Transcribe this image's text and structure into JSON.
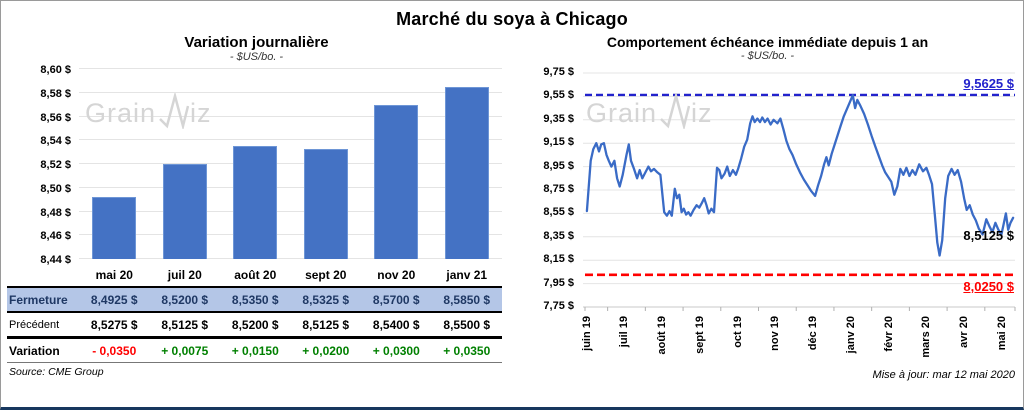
{
  "page": {
    "title": "Marché du soya à Chicago",
    "source": "Source: CME Group",
    "updated": "Mise à jour: mar 12 mai 2020",
    "watermark": {
      "prefix": "Grain",
      "suffix": "iz"
    }
  },
  "colors": {
    "bar": "#4472C4",
    "line": "#3A6BC6",
    "max_line": "#2222CC",
    "min_line": "#FF0000",
    "close_row_bg": "#B4C6E7",
    "close_row_text": "#1F3864",
    "negative": "#FF0000",
    "positive": "#008000",
    "gridline": "#E4E4E4",
    "watermark": "#D5D5D5"
  },
  "chart_data": [
    {
      "type": "bar",
      "title": "Variation  journalière",
      "subtitle": "- $US/bo. -",
      "categories": [
        "mai 20",
        "juil 20",
        "août 20",
        "sept 20",
        "nov 20",
        "janv 21"
      ],
      "values": [
        8.4925,
        8.52,
        8.535,
        8.5325,
        8.57,
        8.585
      ],
      "ylim": [
        8.44,
        8.6
      ],
      "ytick_values": [
        8.44,
        8.46,
        8.48,
        8.5,
        8.52,
        8.54,
        8.56,
        8.58,
        8.6
      ],
      "ytick_labels": [
        "8,44 $",
        "8,46 $",
        "8,48 $",
        "8,50 $",
        "8,52 $",
        "8,54 $",
        "8,56 $",
        "8,58 $",
        "8,60 $"
      ],
      "grid": true,
      "legend": false
    },
    {
      "type": "line",
      "title": "Comportement  échéance immédiate depuis 1 an",
      "subtitle": "- $US/bo. -",
      "x_categories": [
        "juin 19",
        "juil 19",
        "août 19",
        "sept 19",
        "oct 19",
        "nov 19",
        "déc 19",
        "janv 20",
        "févr 20",
        "mars 20",
        "avr 20",
        "mai 20"
      ],
      "xlim": [
        -0.1,
        11.3
      ],
      "ylim": [
        7.75,
        9.75
      ],
      "ytick_values": [
        7.75,
        7.95,
        8.15,
        8.35,
        8.55,
        8.75,
        8.95,
        9.15,
        9.35,
        9.55,
        9.75
      ],
      "ytick_labels": [
        "7,75 $",
        "7,95 $",
        "8,15 $",
        "8,35 $",
        "8,55 $",
        "8,75 $",
        "8,95 $",
        "9,15 $",
        "9,35 $",
        "9,55 $",
        "9,75 $"
      ],
      "max_line": {
        "value": 9.5625,
        "label": "9,5625 $"
      },
      "min_line": {
        "value": 8.025,
        "label": "8,0250 $"
      },
      "last_value_label": "8,5125 $",
      "grid": true,
      "legend": false,
      "series": [
        {
          "name": "Échéance immédiate",
          "points": [
            [
              -0.05,
              8.57
            ],
            [
              0.05,
              9.0
            ],
            [
              0.12,
              9.1
            ],
            [
              0.2,
              9.15
            ],
            [
              0.27,
              9.08
            ],
            [
              0.33,
              9.14
            ],
            [
              0.4,
              9.15
            ],
            [
              0.47,
              9.05
            ],
            [
              0.53,
              9.0
            ],
            [
              0.6,
              8.95
            ],
            [
              0.68,
              9.0
            ],
            [
              0.75,
              8.85
            ],
            [
              0.82,
              8.78
            ],
            [
              0.9,
              8.88
            ],
            [
              1.0,
              9.05
            ],
            [
              1.06,
              9.14
            ],
            [
              1.12,
              9.0
            ],
            [
              1.2,
              8.93
            ],
            [
              1.28,
              8.85
            ],
            [
              1.35,
              8.92
            ],
            [
              1.42,
              8.85
            ],
            [
              1.5,
              8.9
            ],
            [
              1.58,
              8.95
            ],
            [
              1.65,
              8.91
            ],
            [
              1.73,
              8.93
            ],
            [
              1.82,
              8.9
            ],
            [
              1.9,
              8.88
            ],
            [
              2.0,
              8.56
            ],
            [
              2.07,
              8.53
            ],
            [
              2.14,
              8.57
            ],
            [
              2.2,
              8.53
            ],
            [
              2.28,
              8.76
            ],
            [
              2.34,
              8.68
            ],
            [
              2.4,
              8.71
            ],
            [
              2.46,
              8.56
            ],
            [
              2.52,
              8.59
            ],
            [
              2.58,
              8.54
            ],
            [
              2.64,
              8.56
            ],
            [
              2.7,
              8.53
            ],
            [
              2.78,
              8.58
            ],
            [
              2.86,
              8.62
            ],
            [
              2.93,
              8.6
            ],
            [
              3.0,
              8.64
            ],
            [
              3.06,
              8.68
            ],
            [
              3.12,
              8.62
            ],
            [
              3.18,
              8.55
            ],
            [
              3.25,
              8.59
            ],
            [
              3.32,
              8.56
            ],
            [
              3.4,
              8.94
            ],
            [
              3.46,
              8.92
            ],
            [
              3.52,
              8.85
            ],
            [
              3.6,
              8.89
            ],
            [
              3.67,
              8.95
            ],
            [
              3.74,
              8.87
            ],
            [
              3.82,
              8.92
            ],
            [
              3.9,
              8.88
            ],
            [
              3.96,
              8.93
            ],
            [
              4.04,
              9.02
            ],
            [
              4.12,
              9.12
            ],
            [
              4.2,
              9.18
            ],
            [
              4.28,
              9.32
            ],
            [
              4.34,
              9.38
            ],
            [
              4.4,
              9.33
            ],
            [
              4.47,
              9.36
            ],
            [
              4.54,
              9.33
            ],
            [
              4.6,
              9.37
            ],
            [
              4.67,
              9.33
            ],
            [
              4.74,
              9.36
            ],
            [
              4.82,
              9.31
            ],
            [
              4.9,
              9.35
            ],
            [
              5.0,
              9.32
            ],
            [
              5.08,
              9.36
            ],
            [
              5.16,
              9.27
            ],
            [
              5.24,
              9.17
            ],
            [
              5.32,
              9.1
            ],
            [
              5.4,
              9.05
            ],
            [
              5.5,
              8.97
            ],
            [
              5.6,
              8.9
            ],
            [
              5.7,
              8.84
            ],
            [
              5.8,
              8.79
            ],
            [
              5.9,
              8.74
            ],
            [
              6.0,
              8.7
            ],
            [
              6.08,
              8.79
            ],
            [
              6.16,
              8.87
            ],
            [
              6.24,
              8.97
            ],
            [
              6.3,
              9.03
            ],
            [
              6.36,
              8.96
            ],
            [
              6.44,
              9.06
            ],
            [
              6.52,
              9.14
            ],
            [
              6.6,
              9.22
            ],
            [
              6.68,
              9.3
            ],
            [
              6.76,
              9.38
            ],
            [
              6.84,
              9.44
            ],
            [
              6.92,
              9.5
            ],
            [
              7.0,
              9.56
            ],
            [
              7.06,
              9.45
            ],
            [
              7.12,
              9.52
            ],
            [
              7.2,
              9.47
            ],
            [
              7.3,
              9.4
            ],
            [
              7.4,
              9.31
            ],
            [
              7.5,
              9.21
            ],
            [
              7.6,
              9.12
            ],
            [
              7.7,
              9.03
            ],
            [
              7.78,
              8.96
            ],
            [
              7.86,
              8.9
            ],
            [
              7.94,
              8.86
            ],
            [
              8.02,
              8.82
            ],
            [
              8.1,
              8.71
            ],
            [
              8.18,
              8.78
            ],
            [
              8.26,
              8.93
            ],
            [
              8.34,
              8.88
            ],
            [
              8.42,
              8.94
            ],
            [
              8.5,
              8.87
            ],
            [
              8.58,
              8.92
            ],
            [
              8.66,
              8.88
            ],
            [
              8.76,
              8.97
            ],
            [
              8.86,
              8.91
            ],
            [
              8.95,
              8.94
            ],
            [
              9.02,
              8.88
            ],
            [
              9.1,
              8.8
            ],
            [
              9.17,
              8.55
            ],
            [
              9.24,
              8.3
            ],
            [
              9.3,
              8.19
            ],
            [
              9.37,
              8.32
            ],
            [
              9.45,
              8.68
            ],
            [
              9.53,
              8.87
            ],
            [
              9.62,
              8.93
            ],
            [
              9.7,
              8.88
            ],
            [
              9.78,
              8.92
            ],
            [
              9.87,
              8.82
            ],
            [
              9.95,
              8.68
            ],
            [
              10.02,
              8.58
            ],
            [
              10.1,
              8.62
            ],
            [
              10.18,
              8.54
            ],
            [
              10.26,
              8.49
            ],
            [
              10.34,
              8.42
            ],
            [
              10.44,
              8.37
            ],
            [
              10.54,
              8.5
            ],
            [
              10.62,
              8.44
            ],
            [
              10.7,
              8.39
            ],
            [
              10.78,
              8.47
            ],
            [
              10.86,
              8.41
            ],
            [
              10.94,
              8.37
            ],
            [
              11.0,
              8.46
            ],
            [
              11.06,
              8.55
            ],
            [
              11.12,
              8.41
            ],
            [
              11.18,
              8.47
            ],
            [
              11.25,
              8.5125
            ]
          ]
        }
      ]
    }
  ],
  "table": {
    "columns": [
      "mai 20",
      "juil 20",
      "août 20",
      "sept 20",
      "nov 20",
      "janv 21"
    ],
    "rows": [
      {
        "label": "Fermeture",
        "highlight": true,
        "values": [
          "8,4925 $",
          "8,5200 $",
          "8,5350 $",
          "8,5325 $",
          "8,5700 $",
          "8,5850 $"
        ]
      },
      {
        "label": "Précédent",
        "highlight": false,
        "values": [
          "8,5275 $",
          "8,5125 $",
          "8,5200 $",
          "8,5125 $",
          "8,5400 $",
          "8,5500 $"
        ]
      },
      {
        "label": "Variation",
        "variation": true,
        "values": [
          {
            "text": "- 0,0350",
            "sign": "neg"
          },
          {
            "text": "+ 0,0075",
            "sign": "pos"
          },
          {
            "text": "+ 0,0150",
            "sign": "pos"
          },
          {
            "text": "+ 0,0200",
            "sign": "pos"
          },
          {
            "text": "+ 0,0300",
            "sign": "pos"
          },
          {
            "text": "+ 0,0350",
            "sign": "pos"
          }
        ]
      }
    ]
  }
}
